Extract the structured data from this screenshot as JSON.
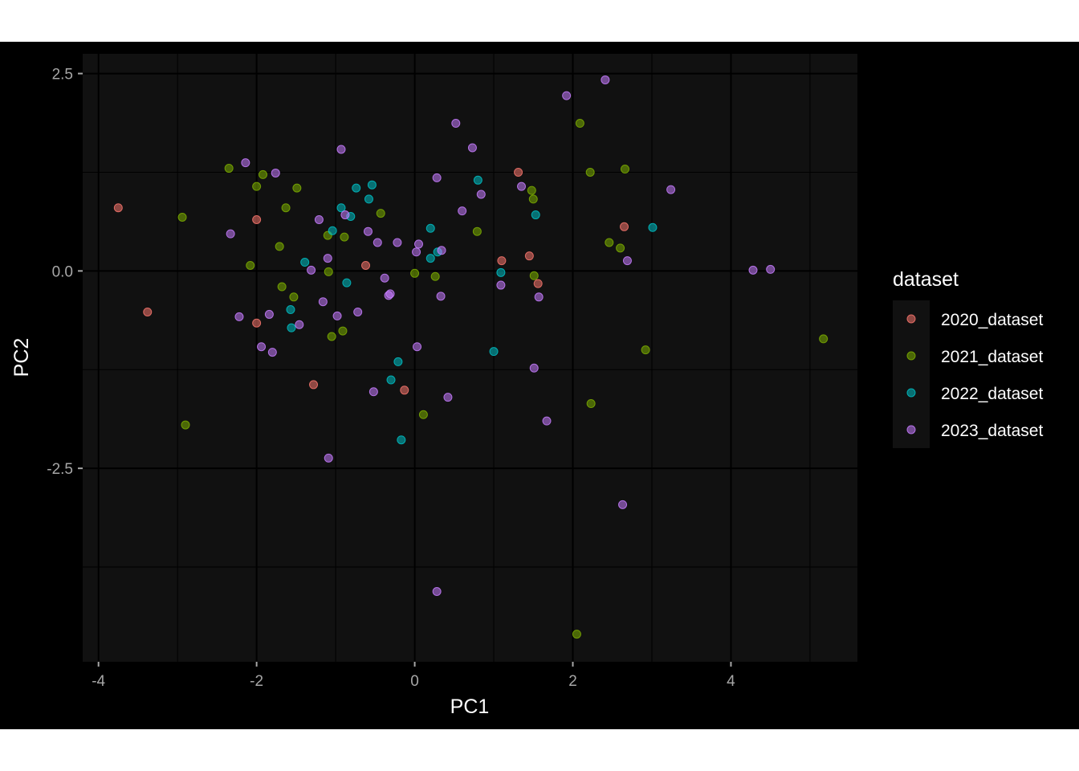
{
  "chart_data": {
    "type": "scatter",
    "xlabel": "PC1",
    "ylabel": "PC2",
    "xlim": [
      -4.2,
      5.6
    ],
    "ylim": [
      -4.95,
      2.75
    ],
    "xticks": [
      -4,
      -2,
      0,
      2,
      4
    ],
    "yticks": [
      2.5,
      0.0,
      -2.5
    ],
    "xtick_labels": [
      "-4",
      "-2",
      "0",
      "2",
      "4"
    ],
    "ytick_labels": [
      "2.5",
      "0.0",
      "-2.5"
    ],
    "grid": true,
    "legend_position": "right",
    "legend_title": "dataset",
    "series": [
      {
        "name": "2020_dataset",
        "color": "#F8766D",
        "points": [
          [
            -3.75,
            0.8
          ],
          [
            -3.38,
            -0.52
          ],
          [
            -2.0,
            0.65
          ],
          [
            -2.0,
            -0.66
          ],
          [
            -1.28,
            -1.44
          ],
          [
            -0.62,
            0.07
          ],
          [
            -0.13,
            -1.51
          ],
          [
            1.1,
            0.13
          ],
          [
            1.31,
            1.25
          ],
          [
            1.45,
            0.19
          ],
          [
            1.56,
            -0.16
          ],
          [
            2.65,
            0.56
          ]
        ]
      },
      {
        "name": "2021_dataset",
        "color": "#7CAE00",
        "points": [
          [
            -2.94,
            0.68
          ],
          [
            -2.9,
            -1.95
          ],
          [
            -2.35,
            1.3
          ],
          [
            -2.08,
            0.07
          ],
          [
            -2.0,
            1.07
          ],
          [
            -1.92,
            1.22
          ],
          [
            -1.71,
            0.31
          ],
          [
            -1.68,
            -0.2
          ],
          [
            -1.63,
            0.8
          ],
          [
            -1.53,
            -0.33
          ],
          [
            -1.49,
            1.05
          ],
          [
            -1.1,
            0.45
          ],
          [
            -1.09,
            -0.01
          ],
          [
            -1.05,
            -0.83
          ],
          [
            -0.91,
            -0.76
          ],
          [
            -0.89,
            0.43
          ],
          [
            -0.43,
            0.73
          ],
          [
            0.0,
            -0.03
          ],
          [
            0.11,
            -1.82
          ],
          [
            0.26,
            -0.07
          ],
          [
            0.79,
            0.5
          ],
          [
            1.48,
            1.02
          ],
          [
            1.5,
            0.91
          ],
          [
            1.51,
            -0.06
          ],
          [
            2.09,
            1.87
          ],
          [
            2.22,
            1.25
          ],
          [
            2.23,
            -1.68
          ],
          [
            2.46,
            0.36
          ],
          [
            2.6,
            0.29
          ],
          [
            2.66,
            1.29
          ],
          [
            2.92,
            -1.0
          ],
          [
            2.05,
            -4.6
          ],
          [
            5.17,
            -0.86
          ]
        ]
      },
      {
        "name": "2022_dataset",
        "color": "#00BFC4",
        "points": [
          [
            -1.39,
            0.11
          ],
          [
            -1.57,
            -0.49
          ],
          [
            -1.56,
            -0.72
          ],
          [
            -1.04,
            0.51
          ],
          [
            -0.93,
            0.8
          ],
          [
            -0.86,
            -0.15
          ],
          [
            -0.81,
            0.69
          ],
          [
            -0.74,
            1.05
          ],
          [
            -0.58,
            0.91
          ],
          [
            -0.54,
            1.09
          ],
          [
            -0.3,
            -1.38
          ],
          [
            -0.21,
            -1.15
          ],
          [
            -0.17,
            -2.14
          ],
          [
            0.2,
            0.54
          ],
          [
            0.2,
            0.16
          ],
          [
            0.29,
            0.24
          ],
          [
            0.8,
            1.15
          ],
          [
            1.0,
            -1.02
          ],
          [
            1.09,
            -0.02
          ],
          [
            1.53,
            0.71
          ],
          [
            3.01,
            0.55
          ]
        ]
      },
      {
        "name": "2023_dataset",
        "color": "#C77CFF",
        "points": [
          [
            -2.33,
            0.47
          ],
          [
            -2.22,
            -0.58
          ],
          [
            -2.14,
            1.37
          ],
          [
            -1.94,
            -0.96
          ],
          [
            -1.84,
            -0.55
          ],
          [
            -1.8,
            -1.03
          ],
          [
            -1.76,
            1.24
          ],
          [
            -1.46,
            -0.68
          ],
          [
            -1.31,
            0.01
          ],
          [
            -1.21,
            0.65
          ],
          [
            -1.16,
            -0.39
          ],
          [
            -1.1,
            0.16
          ],
          [
            -1.09,
            -2.37
          ],
          [
            -0.98,
            -0.57
          ],
          [
            -0.93,
            1.54
          ],
          [
            -0.88,
            0.71
          ],
          [
            -0.72,
            -0.52
          ],
          [
            -0.59,
            0.5
          ],
          [
            -0.52,
            -1.53
          ],
          [
            -0.47,
            0.36
          ],
          [
            -0.38,
            -0.09
          ],
          [
            -0.33,
            -0.31
          ],
          [
            -0.31,
            -0.29
          ],
          [
            -0.22,
            0.36
          ],
          [
            0.02,
            0.24
          ],
          [
            0.03,
            -0.96
          ],
          [
            0.05,
            0.34
          ],
          [
            0.28,
            1.18
          ],
          [
            0.28,
            -4.06
          ],
          [
            0.33,
            -0.32
          ],
          [
            0.34,
            0.26
          ],
          [
            0.42,
            -1.6
          ],
          [
            0.52,
            1.87
          ],
          [
            0.6,
            0.76
          ],
          [
            0.73,
            1.56
          ],
          [
            0.84,
            0.97
          ],
          [
            1.09,
            -0.18
          ],
          [
            1.35,
            1.07
          ],
          [
            1.51,
            -1.23
          ],
          [
            1.57,
            -0.33
          ],
          [
            1.67,
            -1.9
          ],
          [
            1.92,
            2.22
          ],
          [
            2.41,
            2.42
          ],
          [
            2.63,
            -2.96
          ],
          [
            2.69,
            0.13
          ],
          [
            3.24,
            1.03
          ],
          [
            4.28,
            0.01
          ],
          [
            4.5,
            0.02
          ]
        ]
      }
    ]
  }
}
